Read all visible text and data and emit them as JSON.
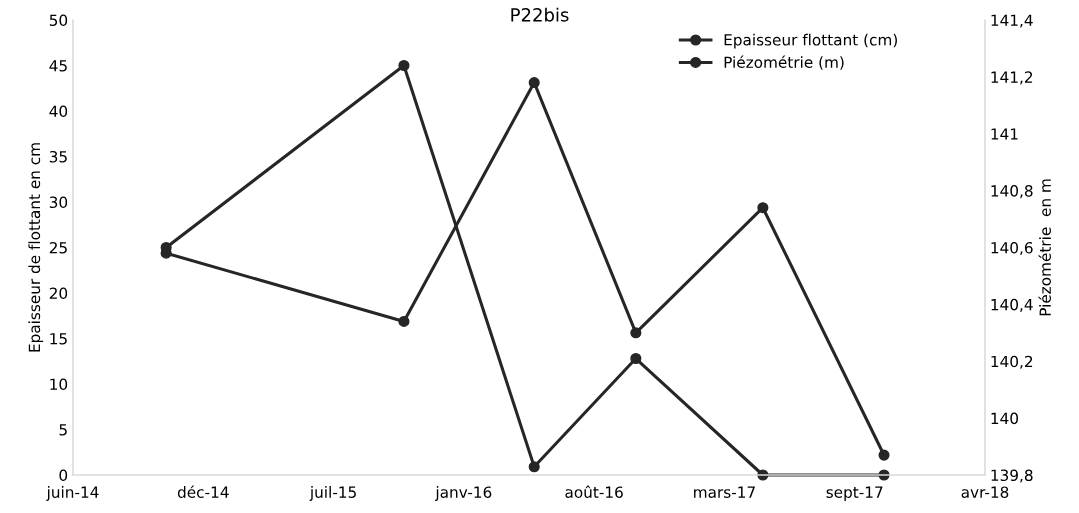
{
  "chart_data": {
    "type": "line",
    "title": "P22bis",
    "ylabel": "Epaisseur de flottant en cm",
    "y2label": "Piézométrie  en m",
    "x": [
      "2014-10-31",
      "2015-10-31",
      "2016-05-18",
      "2016-10-21",
      "2017-05-04",
      "2017-11-06"
    ],
    "series": [
      {
        "name": "Epaisseur flottant (cm)",
        "color": "#262626",
        "values": [
          25,
          45,
          0.9,
          12.8,
          0,
          0
        ]
      },
      {
        "name": "Piézométrie (m)",
        "color": "#262626",
        "axis": "y2",
        "values": [
          140.58,
          140.34,
          141.18,
          140.3,
          140.74,
          139.87
        ]
      }
    ],
    "xlim": [
      "2014-06-10",
      "2018-04-10"
    ],
    "xticks": [
      {
        "value": "2014-06-10",
        "label": "juin-14"
      },
      {
        "value": "2014-12-27",
        "label": "déc-14"
      },
      {
        "value": "2015-07-15",
        "label": "juil-15"
      },
      {
        "value": "2016-01-31",
        "label": "janv-16"
      },
      {
        "value": "2016-08-18",
        "label": "août-16"
      },
      {
        "value": "2017-03-06",
        "label": "mars-17"
      },
      {
        "value": "2017-09-22",
        "label": "sept-17"
      },
      {
        "value": "2018-04-10",
        "label": "avr-18"
      }
    ],
    "ylim": [
      0,
      50
    ],
    "yticks": [
      0,
      5,
      10,
      15,
      20,
      25,
      30,
      35,
      40,
      45,
      50
    ],
    "y2lim": [
      139.8,
      141.4
    ],
    "y2ticks": [
      {
        "value": 139.8,
        "label": "139,8"
      },
      {
        "value": 140,
        "label": "140"
      },
      {
        "value": 140.2,
        "label": "140,2"
      },
      {
        "value": 140.4,
        "label": "140,4"
      },
      {
        "value": 140.6,
        "label": "140,6"
      },
      {
        "value": 140.8,
        "label": "140,8"
      },
      {
        "value": 141,
        "label": "141"
      },
      {
        "value": 141.2,
        "label": "141,2"
      },
      {
        "value": 141.4,
        "label": "141,4"
      }
    ],
    "grid": false,
    "legend": "top right",
    "marker": "circle",
    "line_style": "solid"
  }
}
